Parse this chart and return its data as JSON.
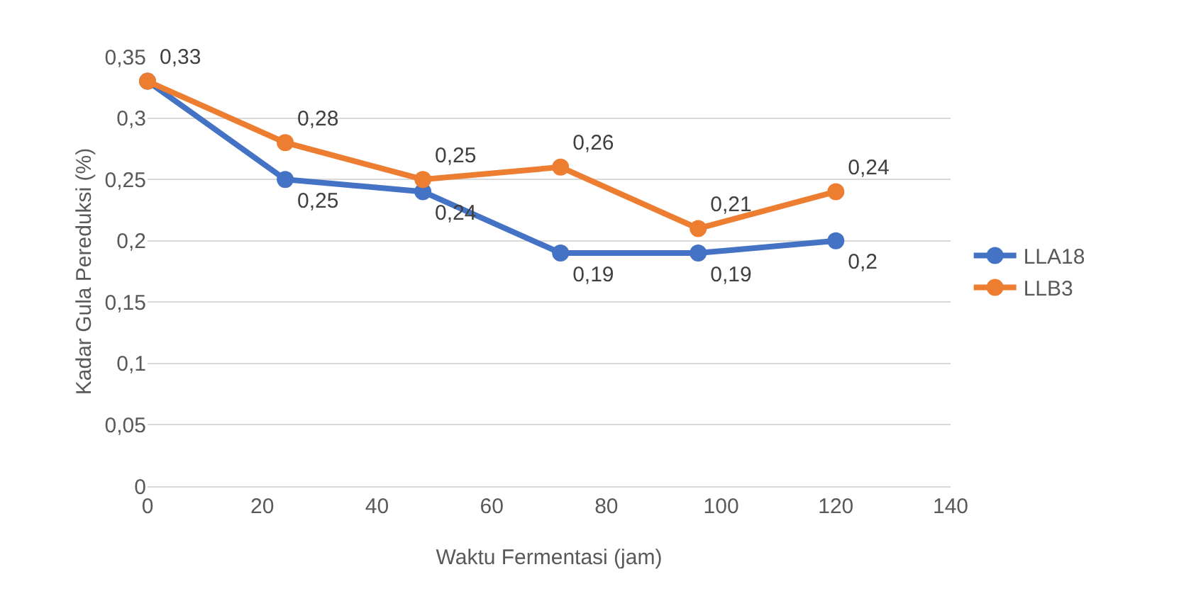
{
  "chart_data": {
    "type": "line",
    "xlabel": "Waktu Fermentasi (jam)",
    "ylabel": "Kadar Gula Pereduksi (%)",
    "x": [
      0,
      24,
      48,
      72,
      96,
      120
    ],
    "series": [
      {
        "name": "LLA18",
        "color": "#4472c4",
        "values": [
          0.33,
          0.25,
          0.24,
          0.19,
          0.19,
          0.2
        ],
        "value_labels": [
          null,
          "0,25",
          "0,24",
          "0,19",
          "0,19",
          "0,2"
        ]
      },
      {
        "name": "LLB3",
        "color": "#ed7d31",
        "values": [
          0.33,
          0.28,
          0.25,
          0.26,
          0.21,
          0.24
        ],
        "value_labels": [
          "0,33",
          "0,28",
          "0,25",
          "0,26",
          "0,21",
          "0,24"
        ]
      }
    ],
    "xlim": [
      0,
      140
    ],
    "xticks": [
      0,
      20,
      40,
      60,
      80,
      100,
      120,
      140
    ],
    "ylim": [
      0,
      0.35
    ],
    "yticks": [
      0,
      {
        "value": 0.05,
        "label": "0,05"
      },
      {
        "value": 0.1,
        "label": "0,1"
      },
      {
        "value": 0.15,
        "label": "0,15"
      },
      {
        "value": 0.2,
        "label": "0,2"
      },
      {
        "value": 0.25,
        "label": "0,25"
      },
      {
        "value": 0.3,
        "label": "0,3"
      },
      {
        "value": 0.35,
        "label": "0,35"
      }
    ],
    "grid": "y",
    "legend": "right",
    "marker": "circle",
    "line_style": "solid"
  }
}
